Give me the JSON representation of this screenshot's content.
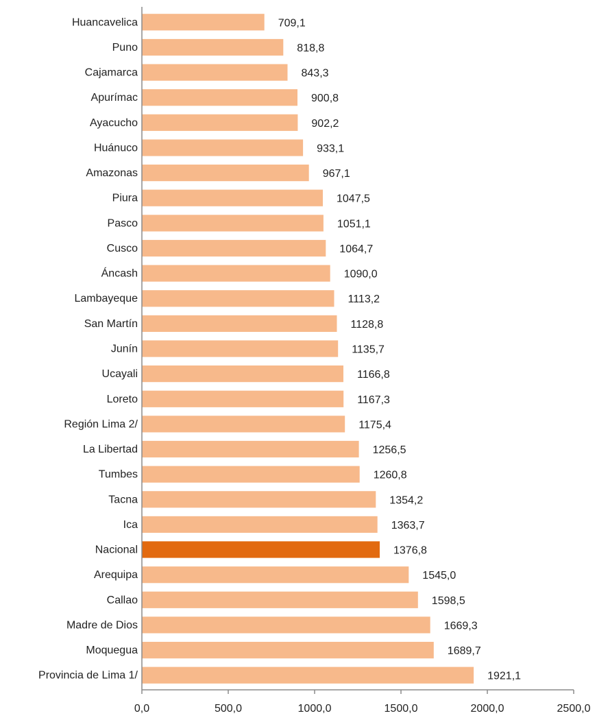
{
  "chart_data": {
    "type": "bar",
    "orientation": "horizontal",
    "title": "",
    "xlabel": "",
    "ylabel": "",
    "categories": [
      "Huancavelica",
      "Puno",
      "Cajamarca",
      "Apurímac",
      "Ayacucho",
      "Huánuco",
      "Amazonas",
      "Piura",
      "Pasco",
      "Cusco",
      "Áncash",
      "Lambayeque",
      "San Martín",
      "Junín",
      "Ucayali",
      "Loreto",
      "Región Lima 2/",
      "La Libertad",
      "Tumbes",
      "Tacna",
      "Ica",
      "Nacional",
      "Arequipa",
      "Callao",
      "Madre de Dios",
      "Moquegua",
      "Provincia de Lima 1/"
    ],
    "values": [
      709.1,
      818.8,
      843.3,
      900.8,
      902.2,
      933.1,
      967.1,
      1047.5,
      1051.1,
      1064.7,
      1090.0,
      1113.2,
      1128.8,
      1135.7,
      1166.8,
      1167.3,
      1175.4,
      1256.5,
      1260.8,
      1354.2,
      1363.7,
      1376.8,
      1545.0,
      1598.5,
      1669.3,
      1689.7,
      1921.1
    ],
    "value_labels": [
      "709,1",
      "818,8",
      "843,3",
      "900,8",
      "902,2",
      "933,1",
      "967,1",
      "1047,5",
      "1051,1",
      "1064,7",
      "1090,0",
      "1113,2",
      "1128,8",
      "1135,7",
      "1166,8",
      "1167,3",
      "1175,4",
      "1256,5",
      "1260,8",
      "1354,2",
      "1363,7",
      "1376,8",
      "1545,0",
      "1598,5",
      "1669,3",
      "1689,7",
      "1921,1"
    ],
    "xlim": [
      0,
      2500
    ],
    "xticks": [
      0,
      500,
      1000,
      1500,
      2000,
      2500
    ],
    "xtick_labels": [
      "0,0",
      "500,0",
      "1000,0",
      "1500,0",
      "2000,0",
      "2500,0"
    ],
    "grid": false,
    "colors": {
      "bar": "#f7b98b",
      "highlight": "#e26a10"
    },
    "highlight_category": "Nacional"
  }
}
